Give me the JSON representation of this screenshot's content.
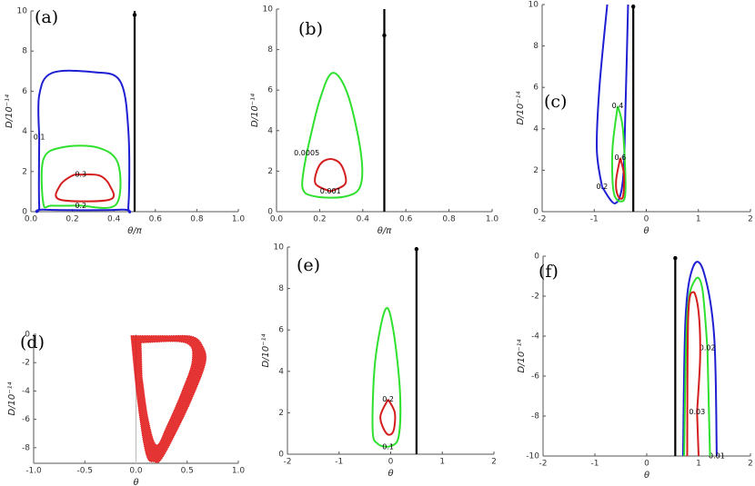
{
  "chart_data": [
    {
      "type": "contour",
      "panel": "(a)",
      "xlabel": "θ/π",
      "ylabel": "D/10⁻¹⁴",
      "xlim": [
        0,
        1
      ],
      "ylim": [
        0,
        10
      ],
      "xticks": [
        {
          "value": 0,
          "label": "0.0"
        },
        {
          "value": 0.2,
          "label": "0.2"
        },
        {
          "value": 0.4,
          "label": "0.4"
        },
        {
          "value": 0.6,
          "label": "0.6"
        },
        {
          "value": 0.8,
          "label": "0.8"
        },
        {
          "value": 1,
          "label": "1.0"
        }
      ],
      "yticks": [
        0,
        2,
        4,
        6,
        8,
        10
      ],
      "vline": {
        "x": 0.5,
        "y0": 0,
        "y1": 10,
        "dot": 9.8,
        "color": "#000000"
      },
      "contours": [
        {
          "level": 0.1,
          "color": "#1e1ed2",
          "x": [
            0.04,
            0.04,
            0.1,
            0.3,
            0.43,
            0.47,
            0.47,
            0.44,
            0.06,
            0.04,
            0.04
          ],
          "y": [
            3.7,
            5.8,
            6.9,
            6.95,
            6.5,
            4,
            0.3,
            0.1,
            0.1,
            0.3,
            3.7
          ]
        },
        {
          "level": 0.2,
          "color": "#2fe02f",
          "x": [
            0.24,
            0.41,
            0.42,
            0.32,
            0.15,
            0.06,
            0.06,
            0.1,
            0.24
          ],
          "y": [
            0.3,
            0.35,
            2.4,
            3.2,
            3.2,
            2.6,
            0.4,
            0.3,
            0.3
          ]
        },
        {
          "level": 0.3,
          "color": "#d41e1e",
          "x": [
            0.24,
            0.33,
            0.38,
            0.38,
            0.14,
            0.14,
            0.2,
            0.24
          ],
          "y": [
            1.85,
            1.8,
            1.3,
            0.6,
            0.6,
            1.3,
            1.8,
            1.85
          ]
        }
      ]
    },
    {
      "type": "contour",
      "panel": "(b)",
      "xlabel": "θ/π",
      "ylabel": "D/10⁻¹⁴",
      "xlim": [
        0,
        1
      ],
      "ylim": [
        0,
        10
      ],
      "xticks": [
        {
          "value": 0,
          "label": "0.0"
        },
        {
          "value": 0.2,
          "label": "0.2"
        },
        {
          "value": 0.4,
          "label": "0.4"
        },
        {
          "value": 0.6,
          "label": "0.6"
        },
        {
          "value": 0.8,
          "label": "0.8"
        },
        {
          "value": 1,
          "label": "1.0"
        }
      ],
      "yticks": [
        0,
        2,
        4,
        6,
        8,
        10
      ],
      "vline": {
        "x": 0.5,
        "y0": 0,
        "y1": 10,
        "dot": 8.7,
        "color": "#000000"
      },
      "contours": [
        {
          "level": 0.0005,
          "color": "#2fe02f",
          "x": [
            0.14,
            0.2,
            0.26,
            0.33,
            0.39,
            0.39,
            0.32,
            0.18,
            0.12,
            0.14
          ],
          "y": [
            2.9,
            5.5,
            6.85,
            5.8,
            3,
            1.3,
            0.75,
            0.75,
            1.2,
            2.9
          ]
        },
        {
          "level": 0.001,
          "color": "#d41e1e",
          "x": [
            0.25,
            0.32,
            0.3,
            0.25,
            0.2,
            0.18,
            0.25
          ],
          "y": [
            1.0,
            1.4,
            2.3,
            2.6,
            2.3,
            1.4,
            1.0
          ]
        }
      ]
    },
    {
      "type": "contour",
      "panel": "(c)",
      "xlabel": "θ",
      "ylabel": "D/10⁻¹⁴",
      "xlim": [
        -2,
        2
      ],
      "ylim": [
        0,
        10
      ],
      "xticks": [
        -2,
        -1,
        0,
        1,
        2
      ],
      "yticks": [
        0,
        2,
        4,
        6,
        8,
        10
      ],
      "vline": {
        "x": -0.25,
        "y0": 0,
        "y1": 10,
        "dot": 9.9,
        "color": "#000000"
      },
      "contours": [
        {
          "level": 0.2,
          "color": "#1e1ed2",
          "x": [
            -0.85,
            -0.95,
            -0.9,
            -0.75,
            null,
            -0.85,
            -0.6,
            -0.45,
            -0.4,
            -0.35
          ],
          "y": [
            1.2,
            3,
            6,
            10,
            null,
            1.2,
            0.4,
            1.5,
            5,
            10
          ]
        },
        {
          "level": 0.4,
          "color": "#2fe02f",
          "x": [
            -0.55,
            -0.45,
            -0.4,
            -0.5,
            -0.63,
            -0.65,
            -0.55
          ],
          "y": [
            5.1,
            4,
            1,
            0.5,
            1,
            3,
            5.1
          ]
        },
        {
          "level": 0.6,
          "color": "#d41e1e",
          "x": [
            -0.5,
            -0.43,
            -0.45,
            -0.55,
            -0.58,
            -0.5
          ],
          "y": [
            2.6,
            1.8,
            0.7,
            0.8,
            1.5,
            2.6
          ]
        }
      ]
    },
    {
      "type": "region",
      "panel": "(d)",
      "xlabel": "θ",
      "ylabel": "D/10⁻¹⁴",
      "xlim": [
        -1,
        1
      ],
      "ylim": [
        -9.1,
        0
      ],
      "xticks": [
        {
          "value": -1,
          "label": "-1.0"
        },
        {
          "value": -0.5,
          "label": "-0.5"
        },
        {
          "value": 0,
          "label": "0.0"
        },
        {
          "value": 0.5,
          "label": "0.5"
        },
        {
          "value": 1,
          "label": "1.0"
        }
      ],
      "yticks": [
        0,
        -2,
        -4,
        -6,
        -8
      ],
      "vline": {
        "x": 0,
        "y0": -9.1,
        "y1": 0,
        "color": "#bbbbbb"
      },
      "color": "#e01010",
      "regions": [
        {
          "x": [
            -0.05,
            0.3,
            0.55,
            0.65,
            0.68,
            0.55,
            0.4,
            0.25,
            0.18,
            0.1,
            0.02,
            -0.05
          ],
          "y": [
            -0.1,
            -0.1,
            -0.15,
            -0.8,
            -2,
            -4.5,
            -6.8,
            -8.8,
            -9.0,
            -8.5,
            -5,
            -0.1
          ]
        },
        {
          "x": [
            0.05,
            0.48,
            0.55,
            0.45,
            0.3,
            0.2,
            0.12,
            0.06
          ],
          "y": [
            -0.6,
            -0.6,
            -1.8,
            -4,
            -6.5,
            -7.8,
            -6,
            -3
          ]
        }
      ]
    },
    {
      "type": "contour",
      "panel": "(e)",
      "xlabel": "θ",
      "ylabel": "D/10⁻¹⁴",
      "xlim": [
        -2,
        2
      ],
      "ylim": [
        0,
        10
      ],
      "xticks": [
        -2,
        -1,
        0,
        1,
        2
      ],
      "yticks": [
        0,
        2,
        4,
        6,
        8,
        10
      ],
      "vline": {
        "x": 0.5,
        "y0": 0,
        "y1": 10,
        "dot": 9.9,
        "color": "#000000"
      },
      "contours": [
        {
          "level": 0.1,
          "color": "#2fe02f",
          "x": [
            -0.05,
            0.15,
            0.18,
            0.05,
            -0.1,
            -0.3,
            -0.35,
            -0.25,
            -0.05
          ],
          "y": [
            0.35,
            0.8,
            3,
            6,
            7,
            4.5,
            1.2,
            0.5,
            0.35
          ]
        },
        {
          "level": 0.2,
          "color": "#d41e1e",
          "x": [
            -0.05,
            0.08,
            0.05,
            -0.08,
            -0.2,
            -0.05
          ],
          "y": [
            2.65,
            2,
            1.1,
            1.0,
            1.8,
            2.65
          ]
        }
      ]
    },
    {
      "type": "contour",
      "panel": "(f)",
      "xlabel": "θ",
      "ylabel": "D/10⁻¹⁴",
      "xlim": [
        -2,
        2
      ],
      "ylim": [
        -10,
        0
      ],
      "xticks": [
        -2,
        -1,
        0,
        1,
        2
      ],
      "yticks": [
        0,
        -2,
        -4,
        -6,
        -8,
        -10
      ],
      "vline": {
        "x": 0.55,
        "y0": -10,
        "y1": 0,
        "dot": -0.1,
        "color": "#000000"
      },
      "contours": [
        {
          "level": 0.01,
          "color": "#1e1ed2",
          "x": [
            1.35,
            1.3,
            1.1,
            0.9,
            0.75,
            0.7
          ],
          "y": [
            -10,
            -4,
            -0.8,
            -0.5,
            -3,
            -10
          ]
        },
        {
          "level": 0.02,
          "color": "#2fe02f",
          "x": [
            1.17,
            1.07,
            0.93,
            0.78,
            0.72,
            null,
            1.17,
            1.22
          ],
          "y": [
            -4.6,
            -1.6,
            -1.2,
            -3,
            -10,
            null,
            -4.6,
            -10
          ]
        },
        {
          "level": 0.03,
          "color": "#d41e1e",
          "x": [
            0.97,
            1.03,
            1.0,
            0.9,
            0.8,
            0.78,
            null,
            0.97,
            1.0
          ],
          "y": [
            -7.8,
            -5,
            -2.8,
            -1.8,
            -3,
            -10,
            null,
            -7.8,
            -10
          ]
        }
      ]
    }
  ]
}
